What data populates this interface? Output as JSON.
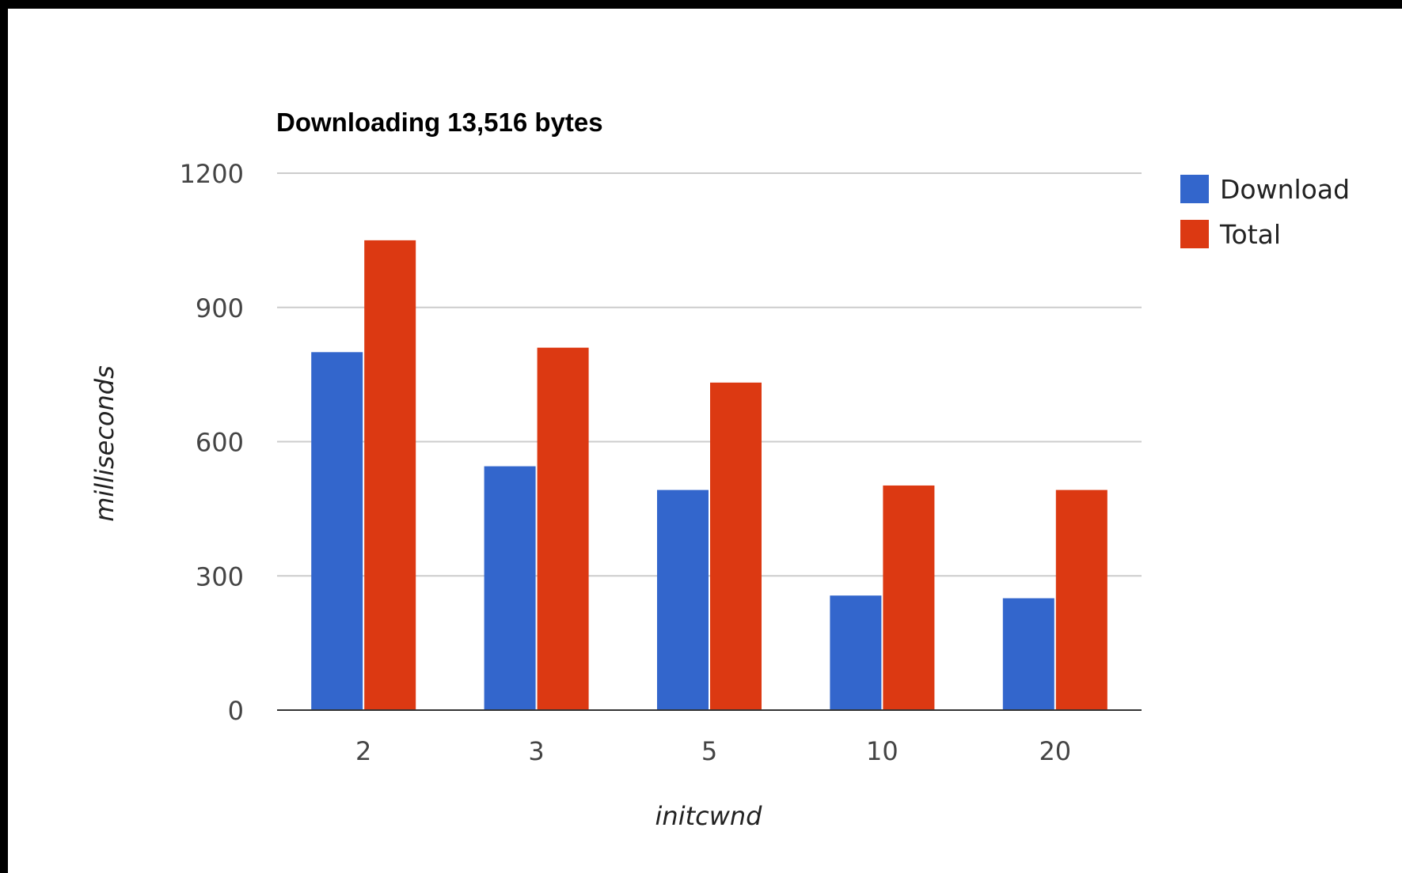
{
  "chart_data": {
    "type": "bar",
    "title": "Downloading 13,516 bytes",
    "xlabel": "initcwnd",
    "ylabel": "milliseconds",
    "categories": [
      "2",
      "3",
      "5",
      "10",
      "20"
    ],
    "series": [
      {
        "name": "Download",
        "color": "#3366cc",
        "values": [
          800,
          545,
          492,
          256,
          250
        ]
      },
      {
        "name": "Total",
        "color": "#dc3912",
        "values": [
          1050,
          810,
          732,
          502,
          492
        ]
      }
    ],
    "ylim": [
      0,
      1200
    ],
    "yticks": [
      "0",
      "300",
      "600",
      "900",
      "1200"
    ],
    "grid": true,
    "legend": "right"
  }
}
